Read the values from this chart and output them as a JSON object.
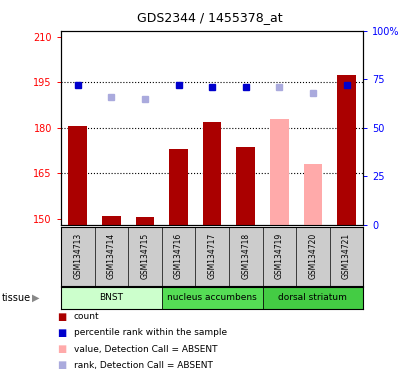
{
  "title": "GDS2344 / 1455378_at",
  "samples": [
    "GSM134713",
    "GSM134714",
    "GSM134715",
    "GSM134716",
    "GSM134717",
    "GSM134718",
    "GSM134719",
    "GSM134720",
    "GSM134721"
  ],
  "bar_values": [
    180.5,
    151.0,
    150.5,
    173.0,
    182.0,
    173.5,
    183.0,
    168.0,
    197.5
  ],
  "bar_absent": [
    false,
    false,
    false,
    false,
    false,
    false,
    true,
    true,
    false
  ],
  "rank_values": [
    72,
    66,
    65,
    72,
    71,
    71,
    71,
    68,
    72
  ],
  "rank_absent": [
    false,
    true,
    true,
    false,
    false,
    false,
    true,
    true,
    false
  ],
  "ylim_left": [
    148,
    212
  ],
  "ylim_right": [
    0,
    100
  ],
  "yticks_left": [
    150,
    165,
    180,
    195,
    210
  ],
  "yticks_right": [
    0,
    25,
    50,
    75,
    100
  ],
  "tissue_groups": [
    {
      "label": "BNST",
      "start": 0,
      "end": 3,
      "color": "#ccffcc"
    },
    {
      "label": "nucleus accumbens",
      "start": 3,
      "end": 6,
      "color": "#55dd55"
    },
    {
      "label": "dorsal striatum",
      "start": 6,
      "end": 9,
      "color": "#44cc44"
    }
  ],
  "bar_color_present": "#aa0000",
  "bar_color_absent": "#ffaaaa",
  "rank_color_present": "#0000cc",
  "rank_color_absent": "#aaaadd",
  "bar_width": 0.55,
  "background_color": "#ffffff",
  "plot_bg_color": "#ffffff",
  "label_bg_color": "#cccccc",
  "legend_items": [
    {
      "color": "#aa0000",
      "label": "count"
    },
    {
      "color": "#0000cc",
      "label": "percentile rank within the sample"
    },
    {
      "color": "#ffaaaa",
      "label": "value, Detection Call = ABSENT"
    },
    {
      "color": "#aaaadd",
      "label": "rank, Detection Call = ABSENT"
    }
  ]
}
